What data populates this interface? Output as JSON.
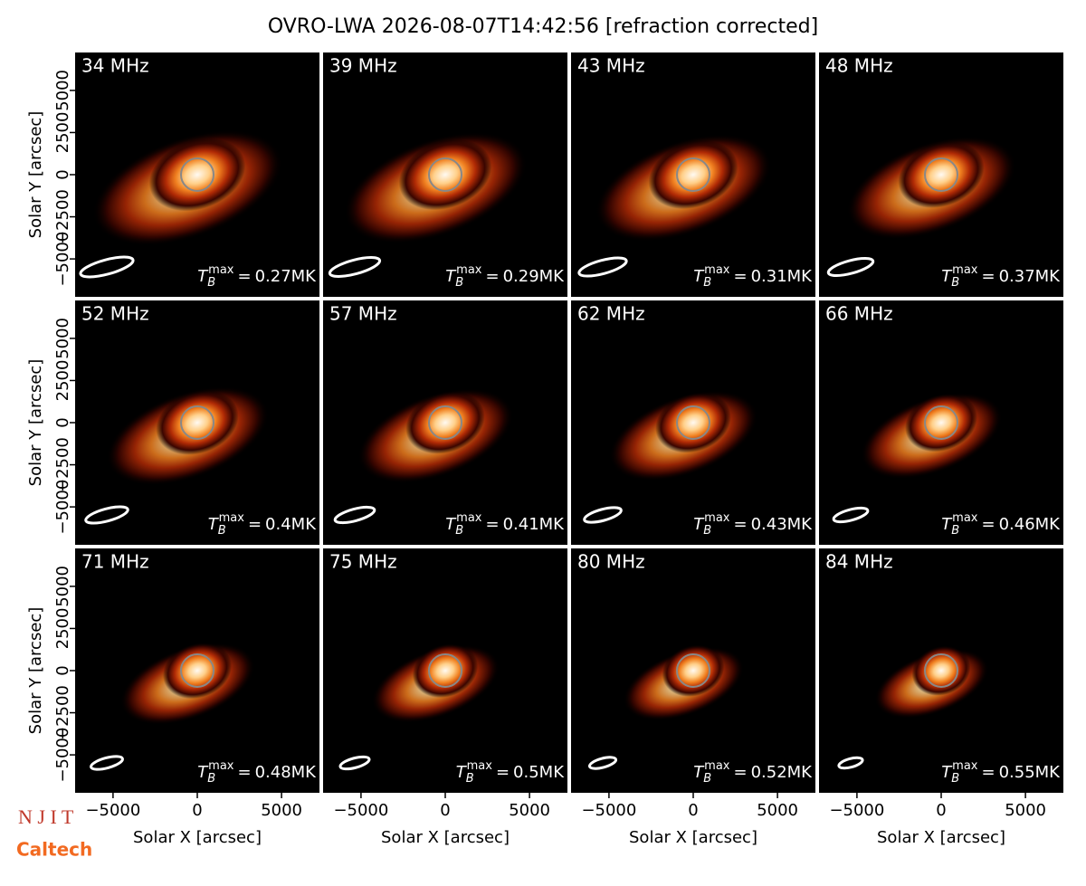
{
  "chart_data": {
    "type": "image-grid",
    "title": "OVRO-LWA 2026-08-07T14:42:56 [refraction corrected]",
    "xlabel": "Solar X [arcsec]",
    "ylabel": "Solar Y [arcsec]",
    "xlim": [
      -7250,
      7250
    ],
    "ylim": [
      -7250,
      7250
    ],
    "xticks": [
      {
        "value": -5000,
        "label": "−5000"
      },
      0,
      5000
    ],
    "yticks": [
      {
        "value": -5000,
        "label": "−5000"
      },
      {
        "value": -2500,
        "label": "−2500"
      },
      0,
      2500,
      5000
    ],
    "tb_symbol": "T",
    "tb_sub": "B",
    "tb_sup": "max",
    "tb_equals": "=",
    "panels": [
      {
        "freq": "34 MHz",
        "tb_max": "0.27MK"
      },
      {
        "freq": "39 MHz",
        "tb_max": "0.29MK"
      },
      {
        "freq": "43 MHz",
        "tb_max": "0.31MK"
      },
      {
        "freq": "48 MHz",
        "tb_max": "0.37MK"
      },
      {
        "freq": "52 MHz",
        "tb_max": "0.4MK"
      },
      {
        "freq": "57 MHz",
        "tb_max": "0.41MK"
      },
      {
        "freq": "62 MHz",
        "tb_max": "0.43MK"
      },
      {
        "freq": "66 MHz",
        "tb_max": "0.46MK"
      },
      {
        "freq": "71 MHz",
        "tb_max": "0.48MK"
      },
      {
        "freq": "75 MHz",
        "tb_max": "0.5MK"
      },
      {
        "freq": "80 MHz",
        "tb_max": "0.52MK"
      },
      {
        "freq": "84 MHz",
        "tb_max": "0.55MK"
      }
    ],
    "logos": [
      "N J I T",
      "Caltech"
    ]
  }
}
